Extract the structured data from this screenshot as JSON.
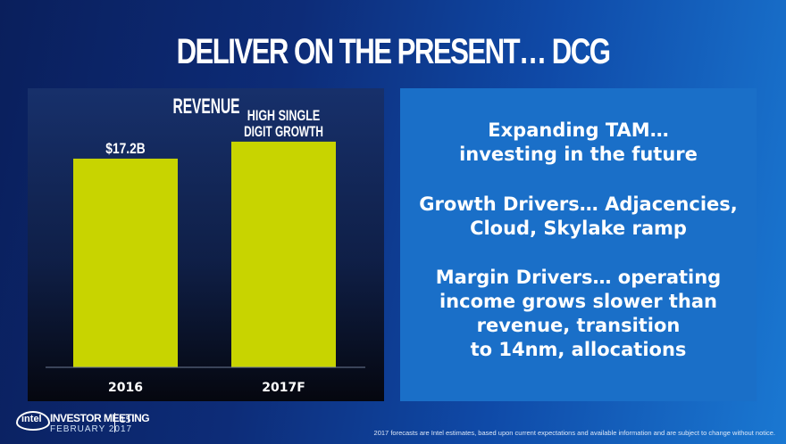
{
  "title": "DELIVER ON THE PRESENT… DCG",
  "chart_data": {
    "type": "bar",
    "title": "REVENUE",
    "categories": [
      "2016",
      "2017F"
    ],
    "values": [
      17.2,
      18.6
    ],
    "data_labels": [
      "$17.2B",
      "HIGH SINGLE\nDIGIT GROWTH"
    ],
    "xlabel": "",
    "ylabel": "",
    "ylim": [
      0,
      23
    ],
    "grid": false,
    "colors": {
      "bar": "#c8d400"
    }
  },
  "text_panel": {
    "paragraphs": [
      "Expanding TAM…\ninvesting in the future",
      "Growth Drivers… Adjacencies,\nCloud, Skylake ramp",
      "Margin Drivers… operating\nincome grows slower than\nrevenue, transition\nto 14nm, allocations"
    ]
  },
  "footer": {
    "logo": "intel",
    "event": "INVESTOR MEETING",
    "date": "FEBRUARY 2017",
    "page": "15",
    "footnote": "2017 forecasts are Intel estimates, based upon current expectations and available information and are subject to change without notice."
  }
}
